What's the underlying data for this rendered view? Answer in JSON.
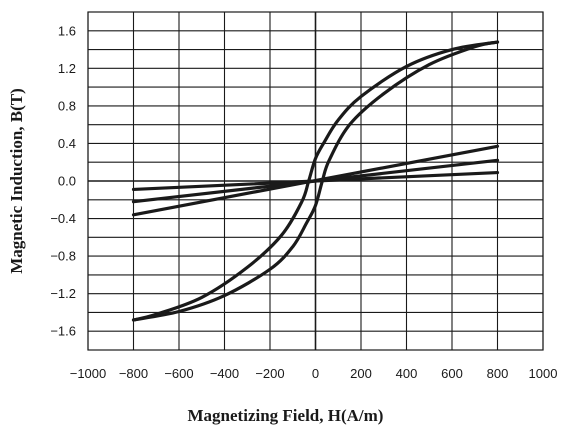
{
  "chart_data": {
    "type": "line",
    "title": "",
    "xlabel": "Magnetizing Field, H(A/m)",
    "ylabel": "Magnetic Induction, B(T)",
    "xlim": [
      -1000,
      1000
    ],
    "ylim": [
      -1.8,
      1.8
    ],
    "x_ticks": [
      -1000,
      -800,
      -600,
      -400,
      -200,
      0,
      200,
      400,
      600,
      800,
      1000
    ],
    "x_tick_labels": [
      "−1000",
      "−800",
      "−600",
      "−400",
      "−200",
      "0",
      "200",
      "400",
      "600",
      "800",
      "1000"
    ],
    "y_ticks": [
      -1.6,
      -1.2,
      -0.8,
      -0.4,
      0.0,
      0.4,
      0.8,
      1.2,
      1.6
    ],
    "y_tick_labels": [
      "−1.6",
      "−1.2",
      "−0.8",
      "−0.4",
      "0.0",
      "0.4",
      "0.8",
      "1.2",
      "1.6"
    ],
    "grid": true,
    "series": [
      {
        "values": [
          [
            -800,
            -1.48
          ],
          [
            -600,
            -1.39
          ],
          [
            -400,
            -1.22
          ],
          [
            -200,
            -0.94
          ],
          [
            -100,
            -0.7
          ],
          [
            -40,
            -0.45
          ],
          [
            0,
            -0.26
          ],
          [
            30,
            0.0
          ],
          [
            60,
            0.22
          ],
          [
            150,
            0.6
          ],
          [
            300,
            0.93
          ],
          [
            500,
            1.24
          ],
          [
            700,
            1.43
          ],
          [
            800,
            1.48
          ]
        ]
      },
      {
        "values": [
          [
            800,
            1.48
          ],
          [
            600,
            1.4
          ],
          [
            400,
            1.22
          ],
          [
            200,
            0.9
          ],
          [
            100,
            0.65
          ],
          [
            40,
            0.42
          ],
          [
            0,
            0.24
          ],
          [
            -30,
            0.0
          ],
          [
            -60,
            -0.22
          ],
          [
            -150,
            -0.58
          ],
          [
            -300,
            -0.92
          ],
          [
            -500,
            -1.24
          ],
          [
            -700,
            -1.42
          ],
          [
            -800,
            -1.48
          ]
        ]
      },
      {
        "values": [
          [
            -800,
            -0.36
          ],
          [
            800,
            0.37
          ]
        ]
      },
      {
        "values": [
          [
            -800,
            -0.22
          ],
          [
            800,
            0.22
          ]
        ]
      },
      {
        "values": [
          [
            -800,
            -0.09
          ],
          [
            800,
            0.09
          ]
        ]
      }
    ]
  }
}
